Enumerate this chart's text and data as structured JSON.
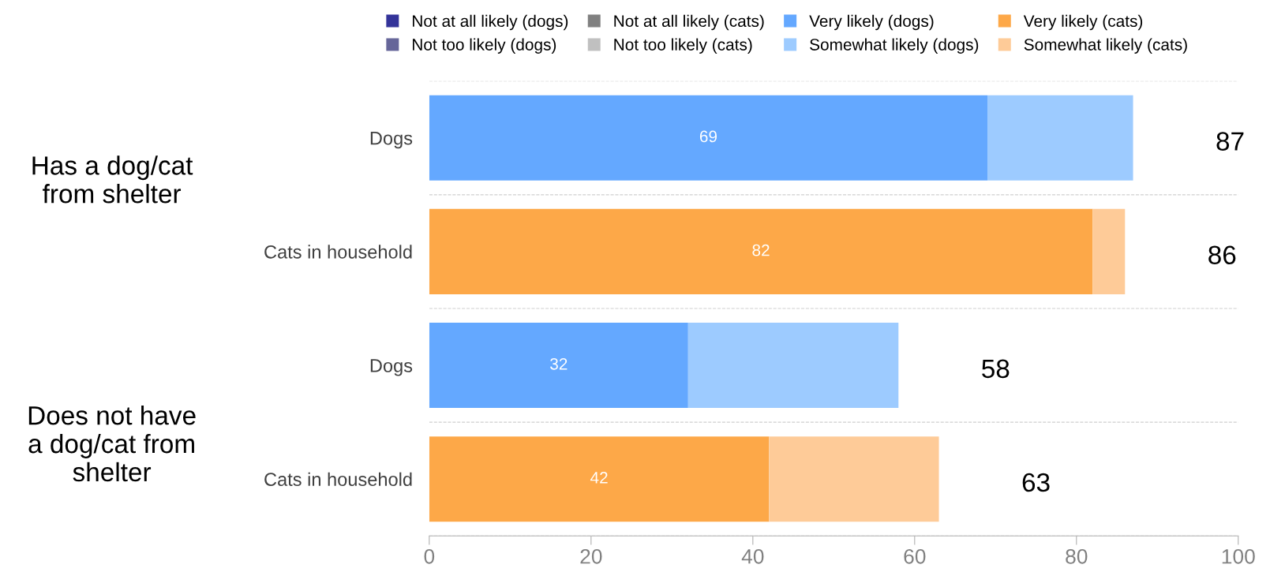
{
  "chart_data": {
    "type": "bar",
    "orientation": "horizontal",
    "stacked": true,
    "categories": [
      "Dogs",
      "Cats in household",
      "Dogs",
      "Cats in household"
    ],
    "series": [
      {
        "name": "Not at all likely (dogs)",
        "color": "#333399",
        "values": [
          null,
          null,
          null,
          null
        ]
      },
      {
        "name": "Not too likely (dogs)",
        "color": "#666699",
        "values": [
          null,
          null,
          null,
          null
        ]
      },
      {
        "name": "Not at all likely (cats)",
        "color": "#808080",
        "values": [
          null,
          null,
          null,
          null
        ]
      },
      {
        "name": "Not too likely (cats)",
        "color": "#c0c0c0",
        "values": [
          null,
          null,
          null,
          null
        ]
      },
      {
        "name": "Very likely (dogs)",
        "color": "#64a8ff",
        "values": [
          69,
          null,
          32,
          null
        ],
        "value_labels": [
          "69",
          null,
          "32",
          null
        ]
      },
      {
        "name": "Somewhat likely (dogs)",
        "color": "#9dcbff",
        "values": [
          18,
          null,
          26,
          null
        ]
      },
      {
        "name": "Very likely (cats)",
        "color": "#fda848",
        "values": [
          null,
          82,
          null,
          42
        ],
        "value_labels": [
          null,
          "82",
          null,
          "42"
        ]
      },
      {
        "name": "Somewhat likely (cats)",
        "color": "#fecb98",
        "values": [
          null,
          4,
          null,
          21
        ]
      }
    ],
    "totals": [
      "87",
      "86",
      "58",
      "63"
    ],
    "xlim": [
      0,
      100
    ],
    "xticks": [
      0,
      20,
      40,
      60,
      80,
      100
    ],
    "annotations": [
      "Has a dog/cat\nfrom shelter",
      "Does not have\na dog/cat from\nshelter"
    ],
    "grid": "y",
    "legend": "top"
  }
}
